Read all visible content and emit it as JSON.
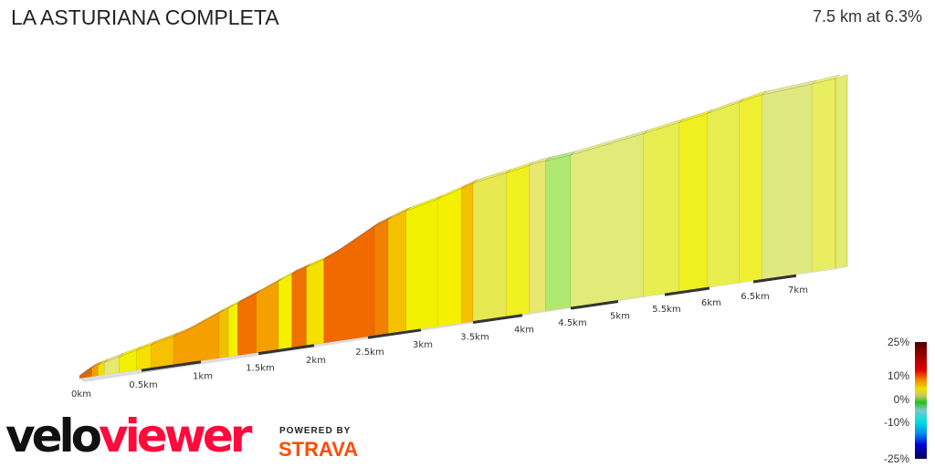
{
  "title": "LA ASTURIANA COMPLETA",
  "summary": "7.5 km at 6.3%",
  "axis_ticks": [
    "0km",
    "0.5km",
    "1km",
    "1.5km",
    "2km",
    "2.5km",
    "3km",
    "3.5km",
    "4km",
    "4.5km",
    "5km",
    "5.5km",
    "6km",
    "6.5km",
    "7km"
  ],
  "segments": [
    {
      "from": 0,
      "to": 0.1,
      "color": "#d96a00"
    },
    {
      "from": 0.1,
      "to": 0.15,
      "color": "#f0a000"
    },
    {
      "from": 0.15,
      "to": 0.2,
      "color": "#f5e000"
    },
    {
      "from": 0.2,
      "to": 0.32,
      "color": "#e8e870"
    },
    {
      "from": 0.32,
      "to": 0.46,
      "color": "#f0f000"
    },
    {
      "from": 0.46,
      "to": 0.58,
      "color": "#f5e000"
    },
    {
      "from": 0.58,
      "to": 0.77,
      "color": "#f5c000"
    },
    {
      "from": 0.77,
      "to": 1.16,
      "color": "#f5a000"
    },
    {
      "from": 1.16,
      "to": 1.24,
      "color": "#f0c000"
    },
    {
      "from": 1.24,
      "to": 1.32,
      "color": "#f5f000"
    },
    {
      "from": 1.32,
      "to": 1.48,
      "color": "#f07000"
    },
    {
      "from": 1.48,
      "to": 1.68,
      "color": "#f5a000"
    },
    {
      "from": 1.68,
      "to": 1.8,
      "color": "#f5f000"
    },
    {
      "from": 1.8,
      "to": 1.93,
      "color": "#f07000"
    },
    {
      "from": 1.93,
      "to": 2.09,
      "color": "#f5e000"
    },
    {
      "from": 2.09,
      "to": 2.56,
      "color": "#f06a00"
    },
    {
      "from": 2.56,
      "to": 2.69,
      "color": "#f08000"
    },
    {
      "from": 2.69,
      "to": 2.86,
      "color": "#f5c000"
    },
    {
      "from": 2.86,
      "to": 3.16,
      "color": "#f0f000"
    },
    {
      "from": 3.16,
      "to": 3.39,
      "color": "#f5f000"
    },
    {
      "from": 3.39,
      "to": 3.5,
      "color": "#f5c000"
    },
    {
      "from": 3.5,
      "to": 3.84,
      "color": "#e8e850"
    },
    {
      "from": 3.84,
      "to": 4.07,
      "color": "#f0f020"
    },
    {
      "from": 4.07,
      "to": 4.24,
      "color": "#e8e870"
    },
    {
      "from": 4.24,
      "to": 4.5,
      "color": "#b0e870"
    },
    {
      "from": 4.5,
      "to": 5.27,
      "color": "#e2ea78"
    },
    {
      "from": 5.27,
      "to": 5.66,
      "color": "#e8ee50"
    },
    {
      "from": 5.66,
      "to": 5.98,
      "color": "#f0f020"
    },
    {
      "from": 5.98,
      "to": 6.34,
      "color": "#e8ee50"
    },
    {
      "from": 6.34,
      "to": 6.6,
      "color": "#f0f030"
    },
    {
      "from": 6.6,
      "to": 7.2,
      "color": "#e0e880"
    },
    {
      "from": 7.2,
      "to": 7.5,
      "color": "#e8ee60"
    }
  ],
  "logo": {
    "velo": "velo",
    "viewer": "viewer",
    "powered_by": "POWERED BY",
    "strava": "STRAVA"
  },
  "legend": {
    "labels": [
      "25%",
      "10%",
      "0%",
      "-10%",
      "-25%"
    ]
  }
}
